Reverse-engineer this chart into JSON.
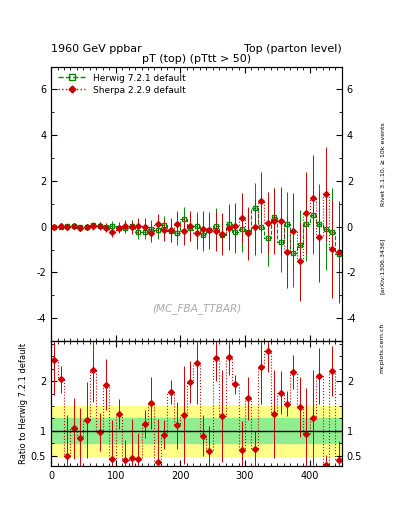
{
  "title_left": "1960 GeV ppbar",
  "title_right": "Top (parton level)",
  "plot_title": "pT (top) (pTtt > 50)",
  "watermark": "(MC_FBA_TTBAR)",
  "rivet_label": "Rivet 3.1.10, ≥ 10k events",
  "arxiv_label": "[arXiv:1306.3436]",
  "mcplots_label": "mcplots.cern.ch",
  "ylabel_ratio": "Ratio to Herwig 7.2.1 default",
  "xlim": [
    0,
    450
  ],
  "ylim_main": [
    -5,
    7
  ],
  "ylim_ratio": [
    0.3,
    2.8
  ],
  "yticks_main": [
    -4,
    -2,
    0,
    2,
    4,
    6
  ],
  "yticks_ratio": [
    0.5,
    1.0,
    2.0
  ],
  "ytick_labels_ratio": [
    "0.5",
    "1",
    "2"
  ],
  "herwig_color": "#008800",
  "sherpa_color": "#cc0000",
  "band_green": "#90ee90",
  "band_yellow": "#ffff88",
  "n_bins": 45,
  "x_edges": [
    0,
    10,
    20,
    30,
    40,
    50,
    60,
    70,
    80,
    90,
    100,
    110,
    120,
    130,
    140,
    150,
    160,
    170,
    180,
    190,
    200,
    210,
    220,
    230,
    240,
    250,
    260,
    270,
    280,
    290,
    300,
    310,
    320,
    330,
    340,
    350,
    360,
    370,
    380,
    390,
    400,
    410,
    420,
    430,
    440,
    450
  ]
}
